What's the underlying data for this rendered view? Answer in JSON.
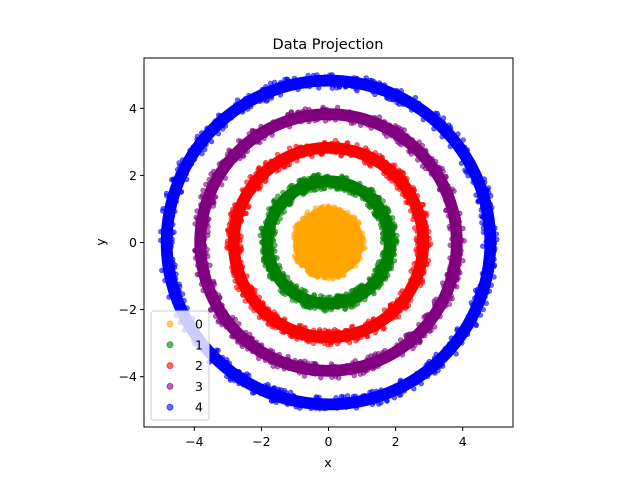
{
  "chart_data": {
    "type": "scatter",
    "title": "Data Projection",
    "xlabel": "x",
    "ylabel": "y",
    "xlim": [
      -5.5,
      5.5
    ],
    "ylim": [
      -5.5,
      5.5
    ],
    "xticks": [
      -4,
      -2,
      0,
      2,
      4
    ],
    "yticks": [
      -4,
      -2,
      0,
      2,
      4
    ],
    "grid": false,
    "legend_position": "lower-left",
    "series": [
      {
        "name": "0",
        "color": "#ffa500",
        "alpha": 0.6,
        "kind": "disk",
        "r_min": 0.0,
        "r_max": 1.1
      },
      {
        "name": "1",
        "color": "#008000",
        "alpha": 0.6,
        "kind": "ring",
        "r_min": 1.6,
        "r_max": 2.05
      },
      {
        "name": "2",
        "color": "#ff0000",
        "alpha": 0.6,
        "kind": "ring",
        "r_min": 2.6,
        "r_max": 3.05
      },
      {
        "name": "3",
        "color": "#800080",
        "alpha": 0.6,
        "kind": "ring",
        "r_min": 3.6,
        "r_max": 4.05
      },
      {
        "name": "4",
        "color": "#0000ff",
        "alpha": 0.6,
        "kind": "ring",
        "r_min": 4.6,
        "r_max": 5.05
      }
    ]
  }
}
